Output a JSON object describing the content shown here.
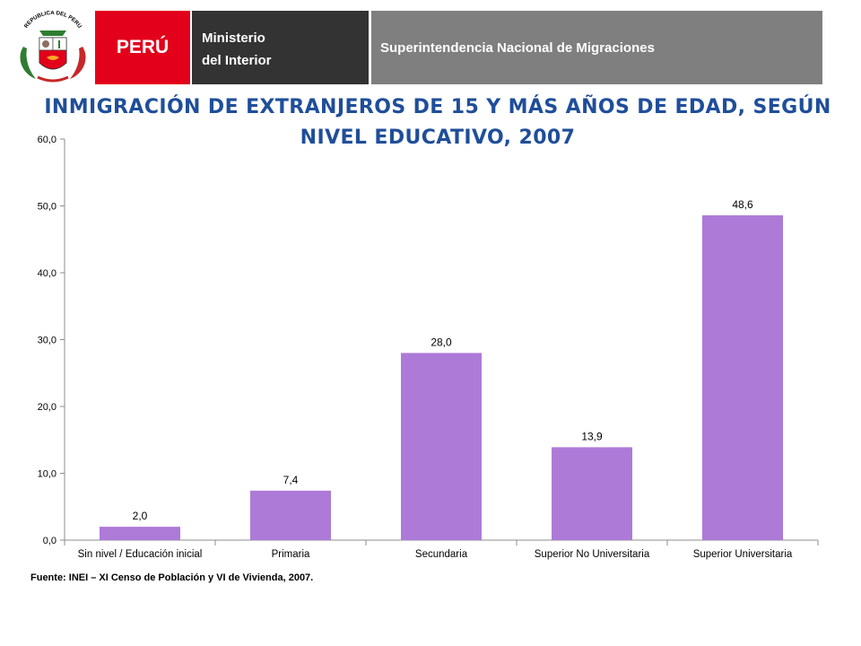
{
  "header": {
    "coat_text": "REPUBLICA DEL PERU",
    "peru_label": "PERÚ",
    "ministry_line1": "Ministerio",
    "ministry_line2": "del Interior",
    "agency": "Superintendencia Nacional de Migraciones"
  },
  "colors": {
    "peru_red": "#e3001b",
    "ministry_dark": "#333333",
    "agency_gray": "#7f7f7f",
    "title_blue": "#1f4e9a",
    "bar": "#ad7ad8"
  },
  "chart_data": {
    "type": "bar",
    "title": "INMIGRACIÓN DE EXTRANJEROS DE 15 Y MÁS AÑOS DE EDAD, SEGÚN NIVEL EDUCATIVO, 2007",
    "categories": [
      "Sin nivel / Educación inicial",
      "Primaria",
      "Secundaria",
      "Superior No Universitaria",
      "Superior Universitaria"
    ],
    "values": [
      2.0,
      7.4,
      28.0,
      13.9,
      48.6
    ],
    "value_labels": [
      "2,0",
      "7,4",
      "28,0",
      "13,9",
      "48,6"
    ],
    "yticks": [
      0,
      10,
      20,
      30,
      40,
      50,
      60
    ],
    "ytick_labels": [
      "0,0",
      "10,0",
      "20,0",
      "30,0",
      "40,0",
      "50,0",
      "60,0"
    ],
    "ylim": [
      0,
      60
    ],
    "xlabel": "",
    "ylabel": "",
    "grid": false,
    "legend": "none"
  },
  "source": "Fuente: INEI – XI Censo  de Población y VI de Vivienda, 2007."
}
